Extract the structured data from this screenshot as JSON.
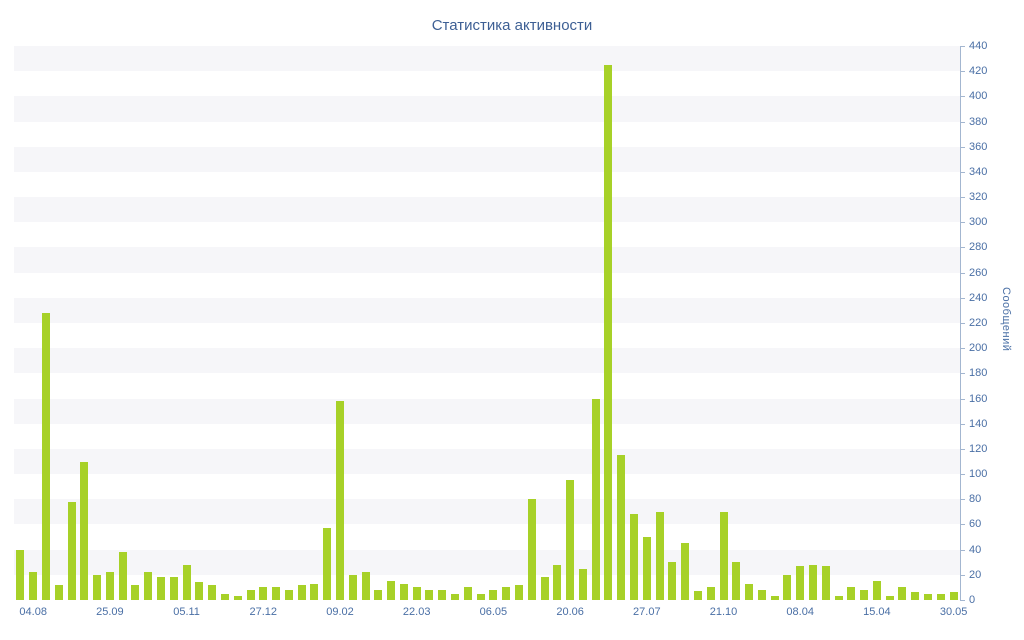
{
  "title": "Статистика активности",
  "chart_data": {
    "type": "bar",
    "title": "Статистика активности",
    "xlabel": "",
    "ylabel": "Сообщений",
    "ylim": [
      0,
      440
    ],
    "ytick_step": 20,
    "grid": "horizontal-bands",
    "legend": "none",
    "bar_color": "#a7d128",
    "band_color": "#f6f6f9",
    "axis_text_color": "#4a6fa5",
    "axis_line_color": "#a3b6d0",
    "title_color": "#3d5f94",
    "x_tick_labels": [
      "04.08",
      "25.09",
      "05.11",
      "27.12",
      "09.02",
      "22.03",
      "06.05",
      "20.06",
      "27.07",
      "21.10",
      "08.04",
      "15.04",
      "30.05"
    ],
    "label_start_index": 1,
    "label_every": 6,
    "values": [
      40,
      22,
      228,
      12,
      78,
      110,
      20,
      22,
      38,
      12,
      22,
      18,
      18,
      28,
      14,
      12,
      5,
      3,
      8,
      10,
      10,
      8,
      12,
      13,
      57,
      158,
      20,
      22,
      8,
      15,
      13,
      10,
      8,
      8,
      5,
      10,
      5,
      8,
      10,
      12,
      80,
      18,
      28,
      95,
      25,
      160,
      425,
      115,
      68,
      50,
      70,
      30,
      45,
      7,
      10,
      70,
      30,
      13,
      8,
      3,
      20,
      27,
      28,
      27,
      3,
      10,
      8,
      15,
      3,
      10,
      6,
      5,
      5,
      6
    ]
  }
}
